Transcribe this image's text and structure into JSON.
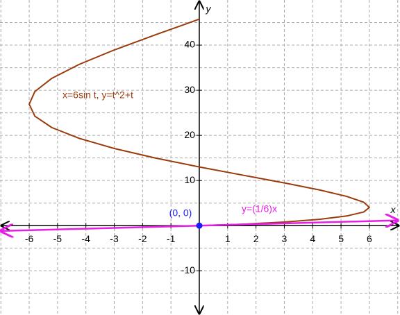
{
  "chart_data": {
    "type": "parametric",
    "xlim": [
      -7.03,
      7.08
    ],
    "ylim": [
      -19.8,
      50
    ],
    "xticks": [
      -6,
      -5,
      -4,
      -3,
      -2,
      -1,
      1,
      2,
      3,
      4,
      5,
      6
    ],
    "yticks": [
      -10,
      10,
      20,
      30,
      40
    ],
    "xgrid": [
      -7,
      -6,
      -5,
      -4,
      -3,
      -2,
      -1,
      1,
      2,
      3,
      4,
      5,
      6,
      7
    ],
    "ygrid": [
      -15,
      -10,
      -5,
      5,
      10,
      15,
      20,
      25,
      30,
      35,
      40,
      45
    ],
    "grid": true,
    "xlabel": "x",
    "ylabel": "y",
    "series": [
      {
        "color": "#9a3b0c",
        "x": [
          0,
          1.55,
          3,
          4.24,
          5.2,
          5.8,
          6,
          5.8,
          5.2,
          4.24,
          3,
          1.55,
          0,
          -1.55,
          -3,
          -4.24,
          -5.2,
          -5.8,
          -6,
          -5.8,
          -5.2,
          -4.24,
          -3,
          -1.55,
          0
        ],
        "values": [
          0,
          0.33,
          0.8,
          1.4,
          2.14,
          3.02,
          4.04,
          5.19,
          6.48,
          7.91,
          9.47,
          11.17,
          13.01,
          14.99,
          17.1,
          19.35,
          21.73,
          24.26,
          26.92,
          29.72,
          32.65,
          35.72,
          38.93,
          42.28,
          45.76
        ]
      },
      {
        "color": "#e61ee6",
        "x": [
          -7,
          7
        ],
        "values": [
          -1.17,
          1.17
        ]
      },
      {
        "color": "#1a1aff",
        "x": [
          0
        ],
        "values": [
          0
        ]
      }
    ],
    "annotations": [
      {
        "text": "x=6sin t, y=t^2+t",
        "color": "#9a3b0c"
      },
      {
        "text": "(0, 0)",
        "color": "#1a1aff"
      },
      {
        "text": "y=(1/6)x",
        "color": "#e61ee6"
      }
    ]
  }
}
